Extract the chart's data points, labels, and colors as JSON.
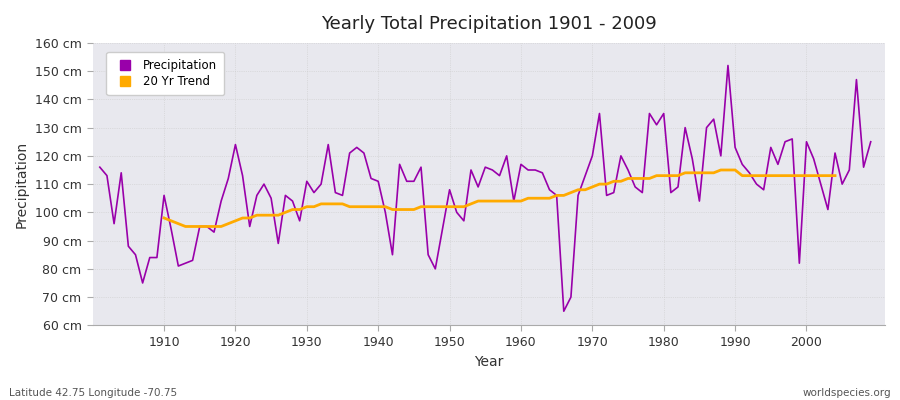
{
  "title": "Yearly Total Precipitation 1901 - 2009",
  "xlabel": "Year",
  "ylabel": "Precipitation",
  "subtitle_left": "Latitude 42.75 Longitude -70.75",
  "subtitle_right": "worldspecies.org",
  "ylim": [
    60,
    160
  ],
  "yticks": [
    60,
    70,
    80,
    90,
    100,
    110,
    120,
    130,
    140,
    150,
    160
  ],
  "ytick_labels": [
    "60 cm",
    "70 cm",
    "80 cm",
    "90 cm",
    "100 cm",
    "110 cm",
    "120 cm",
    "130 cm",
    "140 cm",
    "150 cm",
    "160 cm"
  ],
  "xlim": [
    1901,
    2009
  ],
  "xticks": [
    1910,
    1920,
    1930,
    1940,
    1950,
    1960,
    1970,
    1980,
    1990,
    2000
  ],
  "precip_color": "#9900aa",
  "trend_color": "#ffaa00",
  "fig_bg_color": "#ffffff",
  "plot_bg_color": "#e8e8ee",
  "grid_color": "#cccccc",
  "legend_bg": "#ffffff",
  "years": [
    1901,
    1902,
    1903,
    1904,
    1905,
    1906,
    1907,
    1908,
    1909,
    1910,
    1911,
    1912,
    1913,
    1914,
    1915,
    1916,
    1917,
    1918,
    1919,
    1920,
    1921,
    1922,
    1923,
    1924,
    1925,
    1926,
    1927,
    1928,
    1929,
    1930,
    1931,
    1932,
    1933,
    1934,
    1935,
    1936,
    1937,
    1938,
    1939,
    1940,
    1941,
    1942,
    1943,
    1944,
    1945,
    1946,
    1947,
    1948,
    1949,
    1950,
    1951,
    1952,
    1953,
    1954,
    1955,
    1956,
    1957,
    1958,
    1959,
    1960,
    1961,
    1962,
    1963,
    1964,
    1965,
    1966,
    1967,
    1968,
    1969,
    1970,
    1971,
    1972,
    1973,
    1974,
    1975,
    1976,
    1977,
    1978,
    1979,
    1980,
    1981,
    1982,
    1983,
    1984,
    1985,
    1986,
    1987,
    1988,
    1989,
    1990,
    1991,
    1992,
    1993,
    1994,
    1995,
    1996,
    1997,
    1998,
    1999,
    2000,
    2001,
    2002,
    2003,
    2004,
    2005,
    2006,
    2007,
    2008,
    2009
  ],
  "precip": [
    116,
    113,
    96,
    114,
    88,
    85,
    75,
    84,
    84,
    106,
    94,
    81,
    82,
    83,
    95,
    95,
    93,
    104,
    112,
    124,
    113,
    95,
    106,
    110,
    105,
    89,
    106,
    104,
    97,
    111,
    107,
    110,
    124,
    107,
    106,
    121,
    123,
    121,
    112,
    111,
    100,
    85,
    117,
    111,
    111,
    116,
    85,
    80,
    94,
    108,
    100,
    97,
    115,
    109,
    116,
    115,
    113,
    120,
    104,
    117,
    115,
    115,
    114,
    108,
    106,
    65,
    70,
    106,
    113,
    120,
    135,
    106,
    107,
    120,
    115,
    109,
    107,
    135,
    131,
    135,
    107,
    109,
    130,
    119,
    104,
    130,
    133,
    120,
    152,
    123,
    117,
    114,
    110,
    108,
    123,
    117,
    125,
    126,
    82,
    125,
    119,
    110,
    101,
    121,
    110,
    115,
    147,
    116,
    125
  ],
  "trend": [
    null,
    null,
    null,
    null,
    null,
    null,
    null,
    null,
    null,
    98,
    97,
    96,
    95,
    95,
    95,
    95,
    95,
    95,
    96,
    97,
    98,
    98,
    99,
    99,
    99,
    99,
    100,
    101,
    101,
    102,
    102,
    103,
    103,
    103,
    103,
    102,
    102,
    102,
    102,
    102,
    102,
    101,
    101,
    101,
    101,
    102,
    102,
    102,
    102,
    102,
    102,
    102,
    103,
    104,
    104,
    104,
    104,
    104,
    104,
    104,
    105,
    105,
    105,
    105,
    106,
    106,
    107,
    108,
    108,
    109,
    110,
    110,
    111,
    111,
    112,
    112,
    112,
    112,
    113,
    113,
    113,
    113,
    114,
    114,
    114,
    114,
    114,
    115,
    115,
    115,
    113,
    113,
    113,
    113,
    113,
    113,
    113,
    113,
    113,
    113,
    113,
    113,
    113,
    113,
    null,
    null,
    null,
    null,
    null
  ]
}
